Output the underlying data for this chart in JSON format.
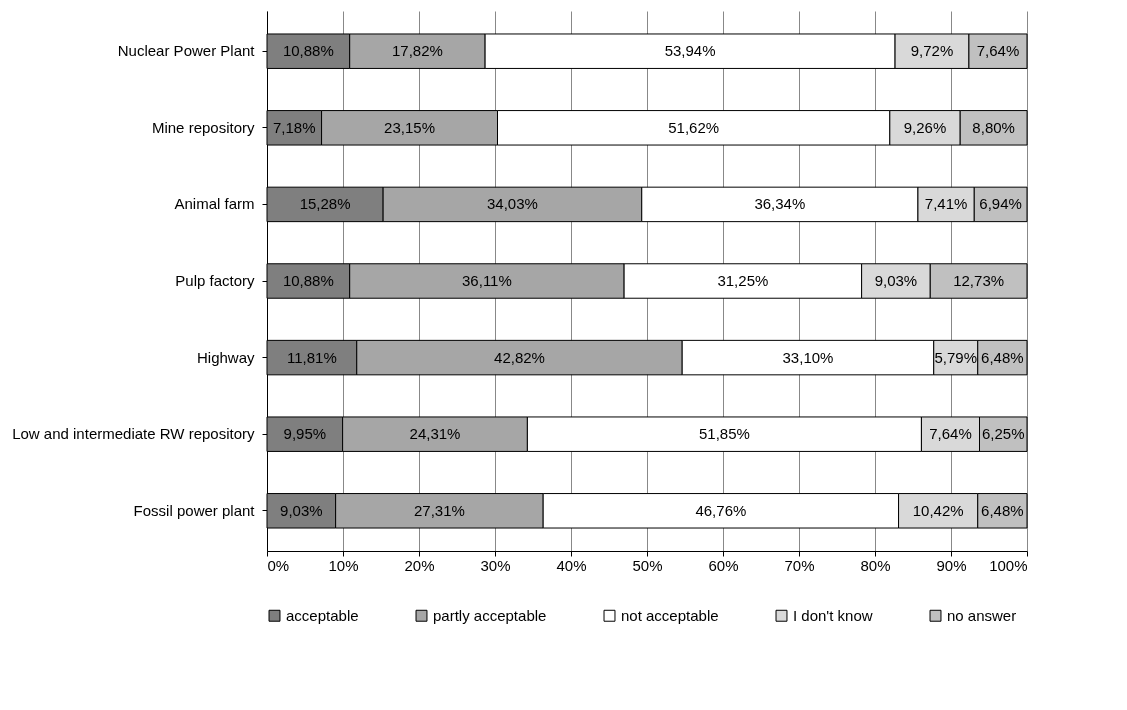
{
  "chart_data": {
    "type": "bar",
    "orientation": "horizontal",
    "stacked": true,
    "categories": [
      "Nuclear Power Plant",
      "Mine repository",
      "Animal farm",
      "Pulp factory",
      "Highway",
      "Low and intermediate RW repository",
      "Fossil power plant"
    ],
    "series": [
      {
        "name": "acceptable",
        "color": "#7f7f7f",
        "values": [
          10.88,
          7.18,
          15.28,
          10.88,
          11.81,
          9.95,
          9.03
        ],
        "value_labels": [
          "10,88%",
          "7,18%",
          "15,28%",
          "10,88%",
          "11,81%",
          "9,95%",
          "9,03%"
        ]
      },
      {
        "name": "partly acceptable",
        "color": "#a6a6a6",
        "values": [
          17.82,
          23.15,
          34.03,
          36.11,
          42.82,
          24.31,
          27.31
        ],
        "value_labels": [
          "17,82%",
          "23,15%",
          "34,03%",
          "36,11%",
          "42,82%",
          "24,31%",
          "27,31%"
        ]
      },
      {
        "name": "not acceptable",
        "color": "#ffffff",
        "values": [
          53.94,
          51.62,
          36.34,
          31.25,
          33.1,
          51.85,
          46.76
        ],
        "value_labels": [
          "53,94%",
          "51,62%",
          "36,34%",
          "31,25%",
          "33,10%",
          "51,85%",
          "46,76%"
        ]
      },
      {
        "name": "I don't know",
        "color": "#d9d9d9",
        "values": [
          9.72,
          9.26,
          7.41,
          9.03,
          5.79,
          7.64,
          10.42
        ],
        "value_labels": [
          "9,72%",
          "9,26%",
          "7,41%",
          "9,03%",
          "5,79%",
          "7,64%",
          "10,42%"
        ]
      },
      {
        "name": "no answer",
        "color": "#c0c0c0",
        "values": [
          7.64,
          8.8,
          6.94,
          12.73,
          6.48,
          6.25,
          6.48
        ],
        "value_labels": [
          "7,64%",
          "8,80%",
          "6,94%",
          "12,73%",
          "6,48%",
          "6,25%",
          "6,48%"
        ]
      }
    ],
    "xlim": [
      0,
      100
    ],
    "xticks": [
      {
        "value": 0,
        "label": "0%"
      },
      {
        "value": 10,
        "label": "10%"
      },
      {
        "value": 20,
        "label": "20%"
      },
      {
        "value": 30,
        "label": "30%"
      },
      {
        "value": 40,
        "label": "40%"
      },
      {
        "value": 50,
        "label": "50%"
      },
      {
        "value": 60,
        "label": "60%"
      },
      {
        "value": 70,
        "label": "70%"
      },
      {
        "value": 80,
        "label": "80%"
      },
      {
        "value": 90,
        "label": "90%"
      },
      {
        "value": 100,
        "label": "100%"
      }
    ],
    "grid": "x",
    "legend": "bottom"
  }
}
